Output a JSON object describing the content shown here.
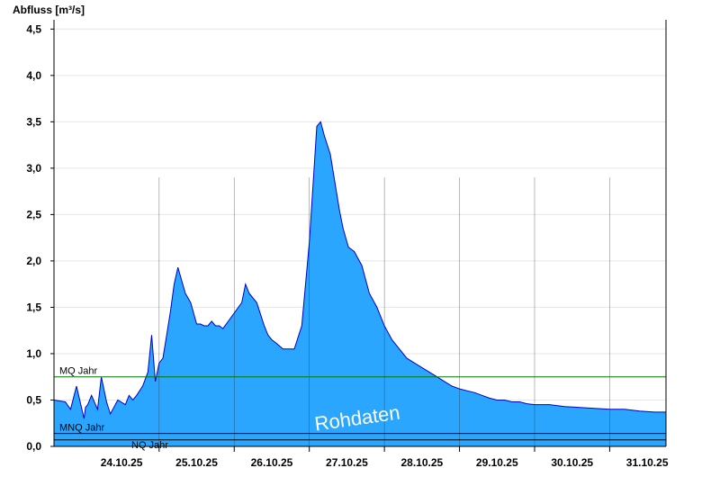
{
  "chart_data": {
    "type": "area",
    "ylabel": "Abfluss [m³/s]",
    "ylim": [
      0,
      4.6
    ],
    "y_ticks": [
      "0,0",
      "0,5",
      "1,0",
      "1,5",
      "2,0",
      "2,5",
      "3,0",
      "3,5",
      "4,0",
      "4,5"
    ],
    "x_unit": "days since 24.10.25 00:00",
    "xlim": [
      -0.4,
      7.75
    ],
    "x_ticks": [
      "24.10.25",
      "25.10.25",
      "26.10.25",
      "27.10.25",
      "28.10.25",
      "29.10.25",
      "30.10.25",
      "31.10.25"
    ],
    "grid": true,
    "colors": {
      "fill": "#2aa6ff",
      "line": "#0000cc",
      "mq": "#007700",
      "mnq": "#000000",
      "nq": "#000000"
    },
    "reference_lines": [
      {
        "label": "MQ Jahr",
        "y": 0.75
      },
      {
        "label": "MNQ Jahr",
        "y": 0.14
      },
      {
        "label": "NQ Jahr",
        "y": 0.07
      }
    ],
    "watermark": "Rohdaten",
    "series": [
      {
        "name": "Abfluss",
        "x": [
          -0.4,
          -0.25,
          -0.18,
          -0.1,
          0.0,
          0.02,
          0.05,
          0.1,
          0.18,
          0.23,
          0.3,
          0.35,
          0.45,
          0.55,
          0.6,
          0.65,
          0.7,
          0.78,
          0.85,
          0.9,
          0.95,
          1.0,
          1.05,
          1.1,
          1.15,
          1.2,
          1.25,
          1.35,
          1.42,
          1.5,
          1.55,
          1.6,
          1.65,
          1.7,
          1.75,
          1.8,
          1.85,
          2.1,
          2.15,
          2.2,
          2.3,
          2.4,
          2.45,
          2.5,
          2.55,
          2.65,
          2.7,
          2.8,
          2.9,
          3.0,
          3.1,
          3.15,
          3.2,
          3.28,
          3.35,
          3.4,
          3.45,
          3.52,
          3.6,
          3.7,
          3.8,
          3.9,
          4.0,
          4.1,
          4.2,
          4.3,
          4.4,
          4.5,
          4.6,
          4.7,
          4.8,
          4.9,
          5.0,
          5.1,
          5.2,
          5.3,
          5.4,
          5.5,
          5.6,
          5.7,
          5.8,
          5.9,
          6.0,
          6.2,
          6.4,
          6.6,
          6.8,
          7.0,
          7.2,
          7.4,
          7.6,
          7.75
        ],
        "y": [
          0.5,
          0.48,
          0.4,
          0.65,
          0.3,
          0.42,
          0.45,
          0.55,
          0.4,
          0.75,
          0.48,
          0.35,
          0.5,
          0.45,
          0.55,
          0.5,
          0.55,
          0.65,
          0.8,
          1.2,
          0.7,
          0.9,
          0.95,
          1.2,
          1.45,
          1.75,
          1.93,
          1.65,
          1.55,
          1.32,
          1.32,
          1.3,
          1.3,
          1.35,
          1.3,
          1.3,
          1.27,
          1.55,
          1.75,
          1.65,
          1.55,
          1.3,
          1.2,
          1.15,
          1.12,
          1.05,
          1.05,
          1.05,
          1.3,
          2.2,
          3.45,
          3.5,
          3.35,
          3.15,
          2.8,
          2.55,
          2.35,
          2.15,
          2.1,
          1.95,
          1.65,
          1.5,
          1.3,
          1.15,
          1.05,
          0.95,
          0.9,
          0.85,
          0.8,
          0.75,
          0.7,
          0.65,
          0.62,
          0.6,
          0.58,
          0.55,
          0.52,
          0.5,
          0.5,
          0.48,
          0.48,
          0.46,
          0.45,
          0.45,
          0.43,
          0.42,
          0.41,
          0.4,
          0.4,
          0.38,
          0.37,
          0.37
        ]
      }
    ]
  }
}
